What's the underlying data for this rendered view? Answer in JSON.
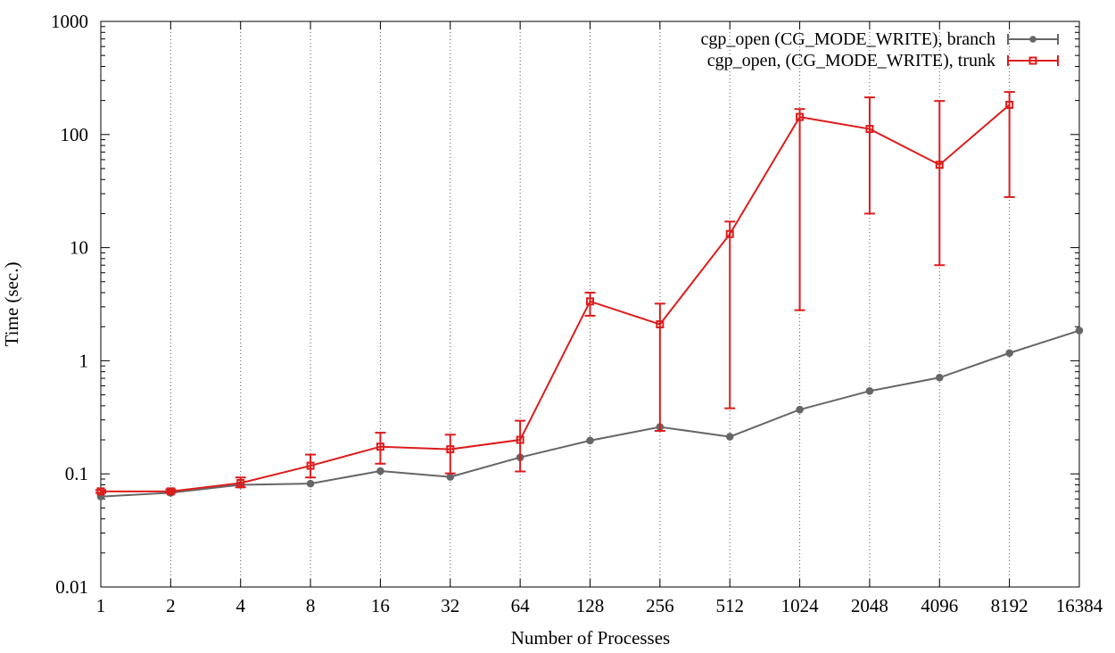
{
  "chart_data": {
    "type": "line",
    "xlabel": "Number of Processes",
    "ylabel": "Time (sec.)",
    "x_scale": "log2",
    "y_scale": "log10",
    "ylim": [
      0.01,
      1000
    ],
    "x_ticks": [
      "1",
      "2",
      "4",
      "8",
      "16",
      "32",
      "64",
      "128",
      "256",
      "512",
      "1024",
      "2048",
      "4096",
      "8192",
      "16384"
    ],
    "y_ticks": [
      "0.01",
      "0.1",
      "1",
      "10",
      "100",
      "1000"
    ],
    "grid": "vertical dotted",
    "legend_position": "top-right",
    "series": [
      {
        "name": "cgp_open (CG_MODE_WRITE), branch",
        "color": "#666666",
        "marker": "circle",
        "x": [
          1,
          2,
          4,
          8,
          16,
          32,
          64,
          128,
          256,
          512,
          1024,
          2048,
          4096,
          8192,
          16384
        ],
        "y": [
          0.063,
          0.068,
          0.08,
          0.082,
          0.106,
          0.094,
          0.14,
          0.197,
          0.26,
          0.213,
          0.37,
          0.54,
          0.71,
          1.17,
          1.85
        ]
      },
      {
        "name": "cgp_open, (CG_MODE_WRITE), trunk",
        "color": "#dd1c1c",
        "marker": "square",
        "x": [
          1,
          2,
          4,
          8,
          16,
          32,
          64,
          128,
          256,
          512,
          1024,
          2048,
          4096,
          8192
        ],
        "y": [
          0.07,
          0.07,
          0.083,
          0.118,
          0.174,
          0.165,
          0.2,
          3.35,
          2.1,
          13.2,
          143,
          112,
          54,
          183
        ],
        "y_low": [
          0.068,
          0.068,
          0.076,
          0.093,
          0.123,
          0.101,
          0.105,
          2.5,
          0.24,
          0.38,
          2.8,
          20,
          7,
          28
        ],
        "y_high": [
          0.072,
          0.073,
          0.093,
          0.148,
          0.231,
          0.222,
          0.295,
          4.0,
          3.2,
          17.0,
          168,
          213,
          198,
          238
        ]
      }
    ]
  }
}
